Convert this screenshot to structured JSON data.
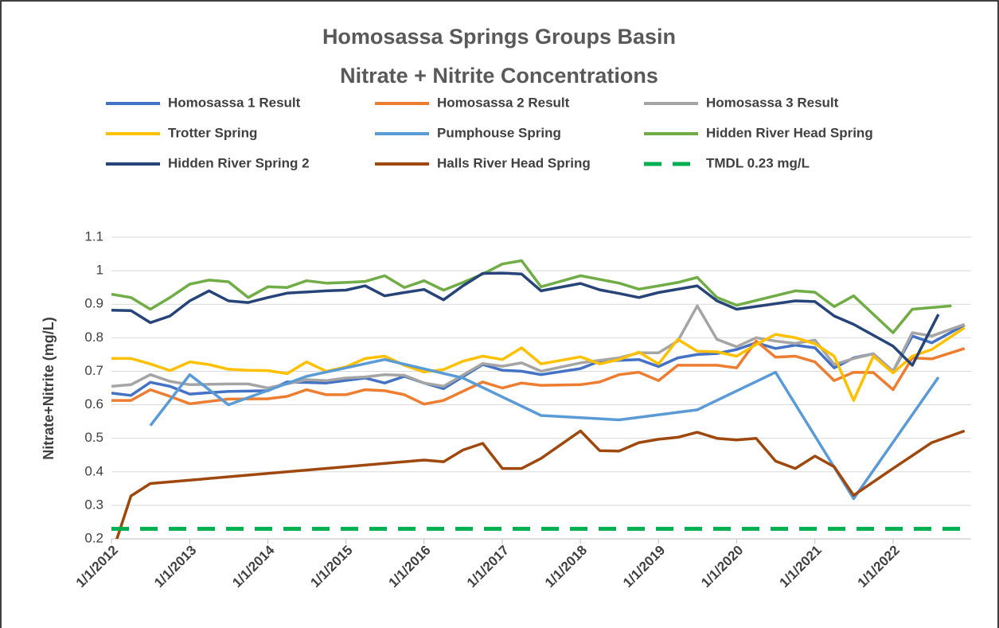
{
  "chart_data": {
    "type": "line",
    "title": "Homosassa Springs Groups Basin",
    "subtitle": "Nitrate + Nitrite Concentrations",
    "ylabel": "Nitrate+Nitrite (mg/L)",
    "xlim": [
      "2012-01-01",
      "2023-01-01"
    ],
    "xticks": [
      {
        "value": "2012-01-01",
        "label": "1/1/2012"
      },
      {
        "value": "2013-01-01",
        "label": "1/1/2013"
      },
      {
        "value": "2014-01-01",
        "label": "1/1/2014"
      },
      {
        "value": "2015-01-01",
        "label": "1/1/2015"
      },
      {
        "value": "2016-01-01",
        "label": "1/1/2016"
      },
      {
        "value": "2017-01-01",
        "label": "1/1/2017"
      },
      {
        "value": "2018-01-01",
        "label": "1/1/2018"
      },
      {
        "value": "2019-01-01",
        "label": "1/1/2019"
      },
      {
        "value": "2020-01-01",
        "label": "1/1/2020"
      },
      {
        "value": "2021-01-01",
        "label": "1/1/2021"
      },
      {
        "value": "2022-01-01",
        "label": "1/1/2022"
      }
    ],
    "ylim": [
      0.2,
      1.1
    ],
    "yticks": [
      0.2,
      0.3,
      0.4,
      0.5,
      0.6,
      0.7,
      0.8,
      0.9,
      1,
      1.1
    ],
    "grid": true,
    "legend": "top",
    "series": [
      {
        "name": "Homosassa 1 Result",
        "color": "#4472c4",
        "x": [
          "2012-01-01",
          "2012-04-01",
          "2012-07-01",
          "2012-10-01",
          "2013-01-01",
          "2013-07-01",
          "2014-01-01",
          "2014-04-01",
          "2014-10-01",
          "2015-04-01",
          "2015-07-01",
          "2015-10-01",
          "2016-01-01",
          "2016-04-01",
          "2016-10-01",
          "2017-01-01",
          "2017-04-01",
          "2017-07-01",
          "2018-01-01",
          "2018-04-01",
          "2018-10-01",
          "2019-01-01",
          "2019-04-01",
          "2019-07-01",
          "2019-10-01",
          "2020-01-01",
          "2020-04-01",
          "2020-07-01",
          "2020-10-01",
          "2021-01-01",
          "2021-04-01",
          "2021-07-01",
          "2021-10-01",
          "2022-01-01",
          "2022-04-01",
          "2022-07-01",
          "2022-12-01"
        ],
        "values": [
          0.635,
          0.628,
          0.667,
          0.655,
          0.632,
          0.64,
          0.642,
          0.668,
          0.665,
          0.68,
          0.665,
          0.685,
          0.665,
          0.648,
          0.72,
          0.703,
          0.7,
          0.69,
          0.708,
          0.73,
          0.735,
          0.714,
          0.74,
          0.75,
          0.753,
          0.765,
          0.785,
          0.768,
          0.778,
          0.77,
          0.71,
          0.74,
          0.752,
          0.7,
          0.805,
          0.785,
          0.838
        ]
      },
      {
        "name": "Homosassa  2 Result",
        "color": "#ed7d31",
        "x": [
          "2012-01-01",
          "2012-04-01",
          "2012-07-01",
          "2012-10-01",
          "2013-01-01",
          "2013-07-01",
          "2014-01-01",
          "2014-04-01",
          "2014-07-01",
          "2014-10-01",
          "2015-01-01",
          "2015-04-01",
          "2015-07-01",
          "2015-10-01",
          "2016-01-01",
          "2016-04-01",
          "2016-10-01",
          "2017-01-01",
          "2017-04-01",
          "2017-07-01",
          "2018-01-01",
          "2018-04-01",
          "2018-07-01",
          "2018-10-01",
          "2019-01-01",
          "2019-04-01",
          "2019-10-01",
          "2020-01-01",
          "2020-04-01",
          "2020-07-01",
          "2020-10-01",
          "2021-01-01",
          "2021-04-01",
          "2021-07-01",
          "2021-10-01",
          "2022-01-01",
          "2022-04-01",
          "2022-07-01",
          "2022-12-01"
        ],
        "values": [
          0.613,
          0.613,
          0.645,
          0.625,
          0.603,
          0.617,
          0.618,
          0.625,
          0.645,
          0.63,
          0.63,
          0.645,
          0.642,
          0.63,
          0.602,
          0.613,
          0.668,
          0.65,
          0.665,
          0.658,
          0.66,
          0.668,
          0.69,
          0.697,
          0.672,
          0.718,
          0.718,
          0.71,
          0.79,
          0.742,
          0.745,
          0.728,
          0.672,
          0.697,
          0.696,
          0.645,
          0.74,
          0.737,
          0.768
        ]
      },
      {
        "name": "Homosassa 3 Result",
        "color": "#a5a5a5",
        "x": [
          "2012-01-01",
          "2012-04-01",
          "2012-07-01",
          "2012-10-01",
          "2013-01-01",
          "2013-07-01",
          "2013-10-01",
          "2014-01-01",
          "2014-07-01",
          "2014-10-01",
          "2015-01-01",
          "2015-04-01",
          "2015-07-01",
          "2015-10-01",
          "2016-01-01",
          "2016-04-01",
          "2016-10-01",
          "2017-01-01",
          "2017-04-01",
          "2017-07-01",
          "2018-01-01",
          "2018-07-01",
          "2018-10-01",
          "2019-01-01",
          "2019-04-01",
          "2019-07-01",
          "2019-10-01",
          "2020-01-01",
          "2020-04-01",
          "2020-07-01",
          "2020-10-01",
          "2021-01-01",
          "2021-04-01",
          "2021-07-01",
          "2021-10-01",
          "2022-01-01",
          "2022-04-01",
          "2022-07-01",
          "2022-12-01"
        ],
        "values": [
          0.655,
          0.66,
          0.69,
          0.67,
          0.66,
          0.662,
          0.662,
          0.65,
          0.675,
          0.672,
          0.68,
          0.683,
          0.69,
          0.688,
          0.665,
          0.655,
          0.723,
          0.715,
          0.725,
          0.7,
          0.725,
          0.74,
          0.755,
          0.755,
          0.79,
          0.895,
          0.795,
          0.773,
          0.8,
          0.79,
          0.783,
          0.793,
          0.72,
          0.738,
          0.752,
          0.7,
          0.815,
          0.805,
          0.84
        ]
      },
      {
        "name": "Trotter Spring",
        "color": "#ffc000",
        "x": [
          "2012-01-01",
          "2012-04-01",
          "2012-07-01",
          "2012-10-01",
          "2013-01-01",
          "2013-04-01",
          "2013-07-01",
          "2013-10-01",
          "2014-01-01",
          "2014-04-01",
          "2014-07-01",
          "2014-10-01",
          "2015-01-01",
          "2015-04-01",
          "2015-07-01",
          "2015-10-01",
          "2016-01-01",
          "2016-04-01",
          "2016-07-01",
          "2016-10-01",
          "2017-01-01",
          "2017-04-01",
          "2017-07-01",
          "2018-01-01",
          "2018-04-01",
          "2018-07-01",
          "2018-10-01",
          "2019-01-01",
          "2019-04-01",
          "2019-07-01",
          "2019-10-01",
          "2020-01-01",
          "2020-04-01",
          "2020-07-01",
          "2020-10-01",
          "2021-01-01",
          "2021-04-01",
          "2021-07-01",
          "2021-10-01",
          "2022-01-01",
          "2022-04-01",
          "2022-07-01",
          "2022-12-01"
        ],
        "values": [
          0.738,
          0.738,
          0.722,
          0.702,
          0.728,
          0.72,
          0.706,
          0.703,
          0.702,
          0.693,
          0.728,
          0.7,
          0.713,
          0.738,
          0.745,
          0.718,
          0.698,
          0.705,
          0.73,
          0.745,
          0.735,
          0.77,
          0.722,
          0.743,
          0.722,
          0.735,
          0.757,
          0.722,
          0.795,
          0.76,
          0.758,
          0.745,
          0.78,
          0.81,
          0.8,
          0.782,
          0.745,
          0.613,
          0.745,
          0.695,
          0.745,
          0.765,
          0.83
        ]
      },
      {
        "name": "Pumphouse Spring",
        "color": "#5b9bd5",
        "x": [
          "2012-07-01",
          "2013-01-01",
          "2013-07-01",
          "2014-07-01",
          "2015-07-01",
          "2016-07-01",
          "2017-07-01",
          "2018-07-01",
          "2019-07-01",
          "2020-07-01",
          "2021-07-01",
          "2022-08-01"
        ],
        "values": [
          0.538,
          0.69,
          0.6,
          0.685,
          0.735,
          0.68,
          0.568,
          0.555,
          0.585,
          0.697,
          0.32,
          0.682
        ]
      },
      {
        "name": "Hidden River Head Spring",
        "color": "#70ad47",
        "x": [
          "2012-01-01",
          "2012-04-01",
          "2012-07-01",
          "2012-10-01",
          "2013-01-01",
          "2013-04-01",
          "2013-07-01",
          "2013-10-01",
          "2014-01-01",
          "2014-04-01",
          "2014-07-01",
          "2014-10-01",
          "2015-01-01",
          "2015-04-01",
          "2015-07-01",
          "2015-10-01",
          "2016-01-01",
          "2016-04-01",
          "2016-07-01",
          "2016-10-01",
          "2017-01-01",
          "2017-04-01",
          "2017-07-01",
          "2018-01-01",
          "2018-07-01",
          "2018-10-01",
          "2019-01-01",
          "2019-04-01",
          "2019-07-01",
          "2019-10-01",
          "2020-01-01",
          "2020-10-01",
          "2021-01-01",
          "2021-04-01",
          "2021-07-01",
          "2022-01-01",
          "2022-04-01",
          "2022-10-01"
        ],
        "values": [
          0.93,
          0.92,
          0.885,
          0.92,
          0.96,
          0.972,
          0.967,
          0.92,
          0.952,
          0.95,
          0.97,
          0.963,
          0.965,
          0.968,
          0.985,
          0.95,
          0.97,
          0.942,
          0.965,
          0.99,
          1.02,
          1.03,
          0.952,
          0.985,
          0.963,
          0.945,
          0.955,
          0.965,
          0.98,
          0.92,
          0.897,
          0.94,
          0.936,
          0.893,
          0.925,
          0.815,
          0.885,
          0.895
        ]
      },
      {
        "name": "Hidden River Spring 2",
        "color": "#264478",
        "x": [
          "2012-01-01",
          "2012-04-01",
          "2012-07-01",
          "2012-10-01",
          "2013-01-01",
          "2013-04-01",
          "2013-07-01",
          "2013-10-01",
          "2014-01-01",
          "2014-04-01",
          "2014-10-01",
          "2015-01-01",
          "2015-04-01",
          "2015-07-01",
          "2015-10-01",
          "2016-01-01",
          "2016-04-01",
          "2016-07-01",
          "2016-10-01",
          "2017-01-01",
          "2017-04-01",
          "2017-07-01",
          "2018-01-01",
          "2018-04-01",
          "2018-07-01",
          "2018-10-01",
          "2019-01-01",
          "2019-07-01",
          "2019-10-01",
          "2020-01-01",
          "2020-10-01",
          "2021-01-01",
          "2021-04-01",
          "2021-07-01",
          "2022-01-01",
          "2022-04-01",
          "2022-08-01"
        ],
        "values": [
          0.882,
          0.881,
          0.845,
          0.865,
          0.91,
          0.94,
          0.91,
          0.905,
          0.92,
          0.933,
          0.94,
          0.942,
          0.955,
          0.925,
          0.935,
          0.944,
          0.913,
          0.955,
          0.992,
          0.993,
          0.99,
          0.94,
          0.962,
          0.943,
          0.932,
          0.92,
          0.935,
          0.955,
          0.91,
          0.885,
          0.91,
          0.908,
          0.865,
          0.84,
          0.775,
          0.718,
          0.87
        ]
      },
      {
        "name": "Halls River Head Spring",
        "color": "#9e480e",
        "x": [
          "2012-01-01",
          "2012-04-01",
          "2012-07-01",
          "2016-01-01",
          "2016-04-01",
          "2016-07-01",
          "2016-10-01",
          "2017-01-01",
          "2017-04-01",
          "2017-07-01",
          "2018-01-01",
          "2018-04-01",
          "2018-07-01",
          "2018-10-01",
          "2019-01-01",
          "2019-04-01",
          "2019-07-01",
          "2019-10-01",
          "2020-01-01",
          "2020-04-01",
          "2020-07-01",
          "2020-10-01",
          "2021-01-01",
          "2021-04-01",
          "2021-07-01",
          "2022-01-01",
          "2022-07-01",
          "2022-12-01"
        ],
        "values": [
          0.15,
          0.328,
          0.365,
          0.435,
          0.43,
          0.465,
          0.485,
          0.41,
          0.41,
          0.44,
          0.522,
          0.463,
          0.462,
          0.487,
          0.497,
          0.503,
          0.518,
          0.5,
          0.495,
          0.5,
          0.432,
          0.41,
          0.447,
          0.415,
          0.33,
          0.41,
          0.487,
          0.522
        ]
      },
      {
        "name": "TMDL 0.23 mg/L",
        "color": "#00b050",
        "dashed": true,
        "x": [
          "2012-01-01",
          "2023-01-01"
        ],
        "values": [
          0.23,
          0.23
        ]
      }
    ]
  }
}
